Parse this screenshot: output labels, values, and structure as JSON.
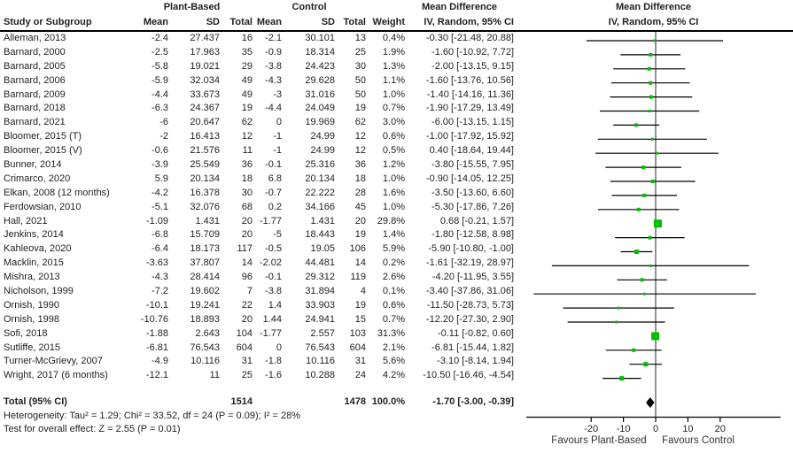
{
  "header": {
    "group_plant": "Plant-Based",
    "group_control": "Control",
    "md_title_text": "Mean Difference",
    "md_title_plot": "Mean Difference",
    "col_study": "Study or Subgroup",
    "col_mean1": "Mean",
    "col_sd1": "SD",
    "col_total1": "Total",
    "col_mean2": "Mean",
    "col_sd2": "SD",
    "col_total2": "Total",
    "col_weight": "Weight",
    "col_ci_text": "IV, Random, 95% CI",
    "col_ci_plot": "IV, Random, 95% CI"
  },
  "total_row": {
    "label": "Total (95% CI)",
    "p_total": "1514",
    "c_total": "1478",
    "weight": "100.0%",
    "ci_text": "-1.70 [-3.00, -0.39]"
  },
  "footer": {
    "heterogeneity": "Heterogeneity: Tau² = 1.29; Chi² = 33.52, df = 24 (P = 0.09); I² = 28%",
    "overall_effect": "Test for overall effect: Z = 2.55 (P = 0.01)"
  },
  "chart_data": {
    "type": "forest",
    "title": "Mean Difference",
    "subtitle": "IV, Random, 95% CI",
    "x_ticks": [
      -20,
      -10,
      0,
      10,
      20
    ],
    "xlim": [
      -40,
      38
    ],
    "favours_left": "Favours Plant-Based",
    "favours_right": "Favours Control",
    "marker_color": "#00c100",
    "line_color": "#000000",
    "diamond_color": "#000000",
    "total": {
      "md": -1.7,
      "lo": -3.0,
      "hi": -0.39
    },
    "studies": [
      {
        "name": "Alleman, 2013",
        "p_mean": "-2.4",
        "p_sd": "27.437",
        "p_total": "16",
        "c_mean": "-2.1",
        "c_sd": "30.101",
        "c_total": "13",
        "weight": "0.4%",
        "ci_text": "-0.30 [-21.48, 20.88]",
        "md": -0.3,
        "lo": -21.48,
        "hi": 20.88,
        "w": 0.4
      },
      {
        "name": "Barnard, 2000",
        "p_mean": "-2.5",
        "p_sd": "17.963",
        "p_total": "35",
        "c_mean": "-0.9",
        "c_sd": "18.314",
        "c_total": "25",
        "weight": "1.9%",
        "ci_text": "-1.60 [-10.92, 7.72]",
        "md": -1.6,
        "lo": -10.92,
        "hi": 7.72,
        "w": 1.9
      },
      {
        "name": "Barnard, 2005",
        "p_mean": "-5.8",
        "p_sd": "19.021",
        "p_total": "29",
        "c_mean": "-3.8",
        "c_sd": "24.423",
        "c_total": "30",
        "weight": "1.3%",
        "ci_text": "-2.00 [-13.15, 9.15]",
        "md": -2.0,
        "lo": -13.15,
        "hi": 9.15,
        "w": 1.3
      },
      {
        "name": "Barnard, 2006",
        "p_mean": "-5.9",
        "p_sd": "32.034",
        "p_total": "49",
        "c_mean": "-4.3",
        "c_sd": "29.628",
        "c_total": "50",
        "weight": "1.1%",
        "ci_text": "-1.60 [-13.76, 10.56]",
        "md": -1.6,
        "lo": -13.76,
        "hi": 10.56,
        "w": 1.1
      },
      {
        "name": "Barnard, 2009",
        "p_mean": "-4.4",
        "p_sd": "33.673",
        "p_total": "49",
        "c_mean": "-3",
        "c_sd": "31.016",
        "c_total": "50",
        "weight": "1.0%",
        "ci_text": "-1.40 [-14.16, 11.36]",
        "md": -1.4,
        "lo": -14.16,
        "hi": 11.36,
        "w": 1.0
      },
      {
        "name": "Barnard, 2018",
        "p_mean": "-6.3",
        "p_sd": "24.367",
        "p_total": "19",
        "c_mean": "-4.4",
        "c_sd": "24.049",
        "c_total": "19",
        "weight": "0.7%",
        "ci_text": "-1.90 [-17.29, 13.49]",
        "md": -1.9,
        "lo": -17.29,
        "hi": 13.49,
        "w": 0.7
      },
      {
        "name": "Barnard, 2021",
        "p_mean": "-6",
        "p_sd": "20.647",
        "p_total": "62",
        "c_mean": "0",
        "c_sd": "19.969",
        "c_total": "62",
        "weight": "3.0%",
        "ci_text": "-6.00 [-13.15, 1.15]",
        "md": -6.0,
        "lo": -13.15,
        "hi": 1.15,
        "w": 3.0
      },
      {
        "name": "Bloomer, 2015 (T)",
        "p_mean": "-2",
        "p_sd": "16.413",
        "p_total": "12",
        "c_mean": "-1",
        "c_sd": "24.99",
        "c_total": "12",
        "weight": "0.6%",
        "ci_text": "-1.00 [-17.92, 15.92]",
        "md": -1.0,
        "lo": -17.92,
        "hi": 15.92,
        "w": 0.6
      },
      {
        "name": "Bloomer, 2015 (V)",
        "p_mean": "-0.6",
        "p_sd": "21.576",
        "p_total": "11",
        "c_mean": "-1",
        "c_sd": "24.99",
        "c_total": "12",
        "weight": "0.5%",
        "ci_text": "0.40 [-18.64, 19.44]",
        "md": 0.4,
        "lo": -18.64,
        "hi": 19.44,
        "w": 0.5
      },
      {
        "name": "Bunner, 2014",
        "p_mean": "-3.9",
        "p_sd": "25.549",
        "p_total": "36",
        "c_mean": "-0.1",
        "c_sd": "25.316",
        "c_total": "36",
        "weight": "1.2%",
        "ci_text": "-3.80 [-15.55, 7.95]",
        "md": -3.8,
        "lo": -15.55,
        "hi": 7.95,
        "w": 1.2
      },
      {
        "name": "Crimarco, 2020",
        "p_mean": "5.9",
        "p_sd": "20.134",
        "p_total": "18",
        "c_mean": "6.8",
        "c_sd": "20.134",
        "c_total": "18",
        "weight": "1.0%",
        "ci_text": "-0.90 [-14.05, 12.25]",
        "md": -0.9,
        "lo": -14.05,
        "hi": 12.25,
        "w": 1.0
      },
      {
        "name": "Elkan, 2008 (12 months)",
        "p_mean": "-4.2",
        "p_sd": "16.378",
        "p_total": "30",
        "c_mean": "-0.7",
        "c_sd": "22.222",
        "c_total": "28",
        "weight": "1.6%",
        "ci_text": "-3.50 [-13.60, 6.60]",
        "md": -3.5,
        "lo": -13.6,
        "hi": 6.6,
        "w": 1.6
      },
      {
        "name": "Ferdowsian, 2010",
        "p_mean": "-5.1",
        "p_sd": "32.076",
        "p_total": "68",
        "c_mean": "0.2",
        "c_sd": "34.166",
        "c_total": "45",
        "weight": "1.0%",
        "ci_text": "-5.30 [-17.86, 7.26]",
        "md": -5.3,
        "lo": -17.86,
        "hi": 7.26,
        "w": 1.0
      },
      {
        "name": "Hall, 2021",
        "p_mean": "-1.09",
        "p_sd": "1.431",
        "p_total": "20",
        "c_mean": "-1.77",
        "c_sd": "1.431",
        "c_total": "20",
        "weight": "29.8%",
        "ci_text": "0.68 [-0.21, 1.57]",
        "md": 0.68,
        "lo": -0.21,
        "hi": 1.57,
        "w": 29.8
      },
      {
        "name": "Jenkins, 2014",
        "p_mean": "-6.8",
        "p_sd": "15.709",
        "p_total": "20",
        "c_mean": "-5",
        "c_sd": "18.443",
        "c_total": "19",
        "weight": "1.4%",
        "ci_text": "-1.80 [-12.58, 8.98]",
        "md": -1.8,
        "lo": -12.58,
        "hi": 8.98,
        "w": 1.4
      },
      {
        "name": "Kahleova, 2020",
        "p_mean": "-6.4",
        "p_sd": "18.173",
        "p_total": "117",
        "c_mean": "-0.5",
        "c_sd": "19.05",
        "c_total": "106",
        "weight": "5.9%",
        "ci_text": "-5.90 [-10.80, -1.00]",
        "md": -5.9,
        "lo": -10.8,
        "hi": -1.0,
        "w": 5.9
      },
      {
        "name": "Macklin, 2015",
        "p_mean": "-3.63",
        "p_sd": "37.807",
        "p_total": "14",
        "c_mean": "-2.02",
        "c_sd": "44.481",
        "c_total": "14",
        "weight": "0.2%",
        "ci_text": "-1.61 [-32.19, 28.97]",
        "md": -1.61,
        "lo": -32.19,
        "hi": 28.97,
        "w": 0.2
      },
      {
        "name": "Mishra, 2013",
        "p_mean": "-4.3",
        "p_sd": "28.414",
        "p_total": "96",
        "c_mean": "-0.1",
        "c_sd": "29.312",
        "c_total": "119",
        "weight": "2.6%",
        "ci_text": "-4.20 [-11.95, 3.55]",
        "md": -4.2,
        "lo": -11.95,
        "hi": 3.55,
        "w": 2.6
      },
      {
        "name": "Nicholson, 1999",
        "p_mean": "-7.2",
        "p_sd": "19.602",
        "p_total": "7",
        "c_mean": "-3.8",
        "c_sd": "31.894",
        "c_total": "4",
        "weight": "0.1%",
        "ci_text": "-3.40 [-37.86, 31.06]",
        "md": -3.4,
        "lo": -37.86,
        "hi": 31.06,
        "w": 0.1
      },
      {
        "name": "Ornish, 1990",
        "p_mean": "-10.1",
        "p_sd": "19.241",
        "p_total": "22",
        "c_mean": "1.4",
        "c_sd": "33.903",
        "c_total": "19",
        "weight": "0.6%",
        "ci_text": "-11.50 [-28.73, 5.73]",
        "md": -11.5,
        "lo": -28.73,
        "hi": 5.73,
        "w": 0.6
      },
      {
        "name": "Ornish, 1998",
        "p_mean": "-10.76",
        "p_sd": "18.893",
        "p_total": "20",
        "c_mean": "1.44",
        "c_sd": "24.941",
        "c_total": "15",
        "weight": "0.7%",
        "ci_text": "-12.20 [-27.30, 2.90]",
        "md": -12.2,
        "lo": -27.3,
        "hi": 2.9,
        "w": 0.7
      },
      {
        "name": "Sofi, 2018",
        "p_mean": "-1.88",
        "p_sd": "2.643",
        "p_total": "104",
        "c_mean": "-1.77",
        "c_sd": "2.557",
        "c_total": "103",
        "weight": "31.3%",
        "ci_text": "-0.11 [-0.82, 0.60]",
        "md": -0.11,
        "lo": -0.82,
        "hi": 0.6,
        "w": 31.3
      },
      {
        "name": "Sutliffe, 2015",
        "p_mean": "-6.81",
        "p_sd": "76.543",
        "p_total": "604",
        "c_mean": "0",
        "c_sd": "76.543",
        "c_total": "604",
        "weight": "2.1%",
        "ci_text": "-6.81 [-15.44, 1.82]",
        "md": -6.81,
        "lo": -15.44,
        "hi": 1.82,
        "w": 2.1
      },
      {
        "name": "Turner-McGrievy, 2007",
        "p_mean": "-4.9",
        "p_sd": "10.116",
        "p_total": "31",
        "c_mean": "-1.8",
        "c_sd": "10.116",
        "c_total": "31",
        "weight": "5.6%",
        "ci_text": "-3.10 [-8.14, 1.94]",
        "md": -3.1,
        "lo": -8.14,
        "hi": 1.94,
        "w": 5.6
      },
      {
        "name": "Wright, 2017 (6 months)",
        "p_mean": "-12.1",
        "p_sd": "11",
        "p_total": "25",
        "c_mean": "-1.6",
        "c_sd": "10.288",
        "c_total": "24",
        "weight": "4.2%",
        "ci_text": "-10.50 [-16.46, -4.54]",
        "md": -10.5,
        "lo": -16.46,
        "hi": -4.54,
        "w": 4.2
      }
    ]
  }
}
